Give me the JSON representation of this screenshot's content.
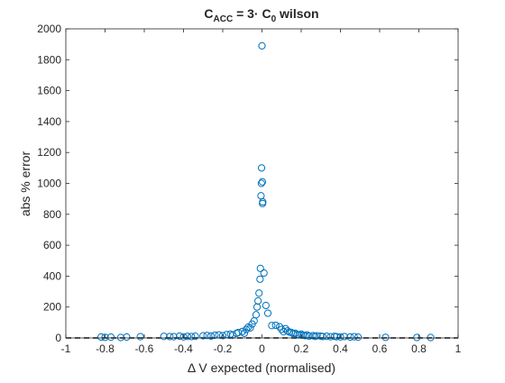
{
  "chart_data": {
    "type": "scatter",
    "title": {
      "main": "C",
      "sub": "ACC",
      "mid": " = 3· C",
      "sub2": "0",
      "tail": " wilson"
    },
    "xlabel": "Δ V expected (normalised)",
    "ylabel": "abs % error",
    "xlim": [
      -1,
      1
    ],
    "ylim": [
      0,
      2000
    ],
    "xticks": [
      -1,
      -0.8,
      -0.6,
      -0.4,
      -0.2,
      0,
      0.2,
      0.4,
      0.6,
      0.8,
      1
    ],
    "xtick_labels": [
      "-1",
      "-0.8",
      "-0.6",
      "-0.4",
      "-0.2",
      "0",
      "0.2",
      "0.4",
      "0.6",
      "0.8",
      "1"
    ],
    "yticks": [
      0,
      200,
      400,
      600,
      800,
      1000,
      1200,
      1400,
      1600,
      1800,
      2000
    ],
    "ytick_labels": [
      "0",
      "200",
      "400",
      "600",
      "800",
      "1000",
      "1200",
      "1400",
      "1600",
      "1800",
      "2000"
    ],
    "grid": false,
    "box": true,
    "reference_line": {
      "y": 0,
      "style": "dashed",
      "color": "#000000"
    },
    "marker_color": "#0072BD",
    "marker": "open-circle",
    "series": [
      {
        "points": [
          [
            -0.82,
            6
          ],
          [
            -0.8,
            4
          ],
          [
            -0.77,
            5
          ],
          [
            -0.72,
            3
          ],
          [
            -0.69,
            6
          ],
          [
            -0.62,
            8
          ],
          [
            -0.5,
            10
          ],
          [
            -0.47,
            9
          ],
          [
            -0.45,
            8
          ],
          [
            -0.42,
            12
          ],
          [
            -0.4,
            7
          ],
          [
            -0.38,
            10
          ],
          [
            -0.36,
            9
          ],
          [
            -0.34,
            11
          ],
          [
            -0.3,
            14
          ],
          [
            -0.28,
            16
          ],
          [
            -0.26,
            12
          ],
          [
            -0.24,
            18
          ],
          [
            -0.22,
            20
          ],
          [
            -0.2,
            15
          ],
          [
            -0.18,
            22
          ],
          [
            -0.16,
            25
          ],
          [
            -0.15,
            18
          ],
          [
            -0.13,
            30
          ],
          [
            -0.12,
            35
          ],
          [
            -0.1,
            42
          ],
          [
            -0.09,
            30
          ],
          [
            -0.08,
            55
          ],
          [
            -0.07,
            70
          ],
          [
            -0.06,
            65
          ],
          [
            -0.05,
            90
          ],
          [
            -0.04,
            110
          ],
          [
            -0.03,
            150
          ],
          [
            -0.025,
            200
          ],
          [
            -0.02,
            240
          ],
          [
            -0.015,
            290
          ],
          [
            -0.01,
            380
          ],
          [
            -0.008,
            450
          ],
          [
            -0.005,
            920
          ],
          [
            -0.003,
            1000
          ],
          [
            -0.002,
            1100
          ],
          [
            0.0,
            1890
          ],
          [
            0.002,
            1010
          ],
          [
            0.003,
            870
          ],
          [
            0.004,
            880
          ],
          [
            0.01,
            420
          ],
          [
            0.02,
            210
          ],
          [
            0.03,
            160
          ],
          [
            0.05,
            80
          ],
          [
            0.07,
            82
          ],
          [
            0.09,
            72
          ],
          [
            0.1,
            55
          ],
          [
            0.11,
            40
          ],
          [
            0.12,
            60
          ],
          [
            0.13,
            45
          ],
          [
            0.14,
            38
          ],
          [
            0.15,
            35
          ],
          [
            0.16,
            28
          ],
          [
            0.17,
            30
          ],
          [
            0.18,
            22
          ],
          [
            0.19,
            20
          ],
          [
            0.2,
            25
          ],
          [
            0.21,
            18
          ],
          [
            0.22,
            15
          ],
          [
            0.23,
            20
          ],
          [
            0.24,
            12
          ],
          [
            0.26,
            15
          ],
          [
            0.27,
            10
          ],
          [
            0.28,
            14
          ],
          [
            0.3,
            12
          ],
          [
            0.31,
            9
          ],
          [
            0.33,
            11
          ],
          [
            0.35,
            8
          ],
          [
            0.37,
            10
          ],
          [
            0.38,
            8
          ],
          [
            0.4,
            7
          ],
          [
            0.42,
            9
          ],
          [
            0.45,
            6
          ],
          [
            0.47,
            8
          ],
          [
            0.49,
            5
          ],
          [
            0.63,
            4
          ],
          [
            0.79,
            3
          ],
          [
            0.86,
            3
          ]
        ]
      }
    ]
  }
}
